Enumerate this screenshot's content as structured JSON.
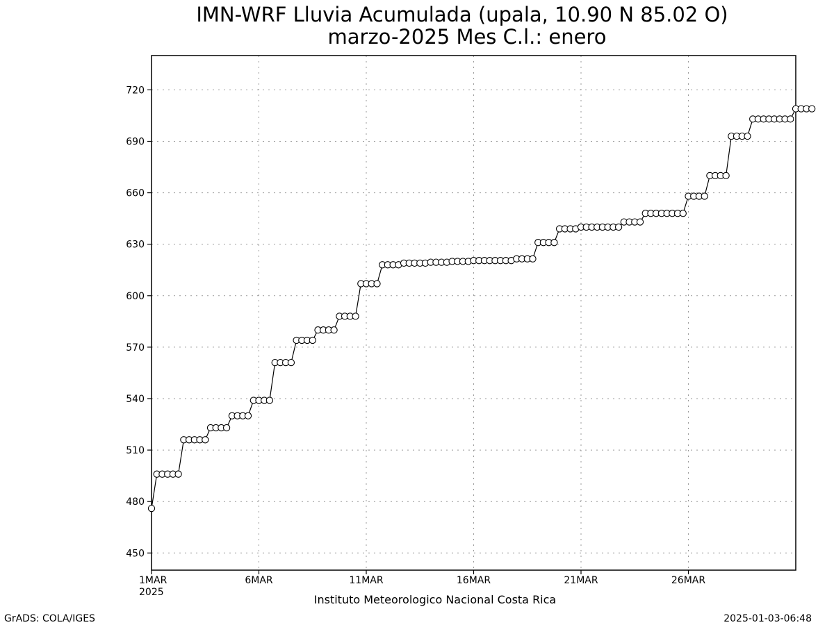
{
  "chart_data": {
    "type": "line",
    "title": "IMN-WRF  Lluvia Acumulada (upala, 10.90  N 85.02  O)",
    "subtitle": "marzo-2025 Mes C.l.: enero",
    "xlabel": "Instituto Meteorologico Nacional Costa Rica",
    "ylabel": "",
    "x_axis": {
      "min_day": 1,
      "max_day": 31,
      "ticks": [
        {
          "day": 1,
          "label": "1MAR"
        },
        {
          "day": 6,
          "label": "6MAR"
        },
        {
          "day": 11,
          "label": "11MAR"
        },
        {
          "day": 16,
          "label": "16MAR"
        },
        {
          "day": 21,
          "label": "21MAR"
        },
        {
          "day": 26,
          "label": "26MAR"
        }
      ],
      "year_label": "2025"
    },
    "ylim": [
      440,
      740
    ],
    "yticks": [
      450,
      480,
      510,
      540,
      570,
      600,
      630,
      660,
      690,
      720
    ],
    "grid": true,
    "values_per_day": 4,
    "series": [
      {
        "values": [
          476,
          496,
          496,
          496,
          496,
          496,
          516,
          516,
          516,
          516,
          516,
          523,
          523,
          523,
          523,
          530,
          530,
          530,
          530,
          539,
          539,
          539,
          539,
          561,
          561,
          561,
          561,
          574,
          574,
          574,
          574,
          580,
          580,
          580,
          580,
          588,
          588,
          588,
          588,
          607,
          607,
          607,
          607,
          618,
          618,
          618,
          618,
          619,
          619,
          619,
          619,
          619,
          619.5,
          619.5,
          619.5,
          619.5,
          620,
          620,
          620,
          620,
          620.5,
          620.5,
          620.5,
          620.5,
          620.5,
          620.5,
          620.5,
          620.5,
          621.5,
          621.5,
          621.5,
          621.5,
          631,
          631,
          631,
          631,
          639,
          639,
          639,
          639,
          640,
          640,
          640,
          640,
          640,
          640,
          640,
          640,
          643,
          643,
          643,
          643,
          648,
          648,
          648,
          648,
          648,
          648,
          648,
          648,
          658,
          658,
          658,
          658,
          670,
          670,
          670,
          670,
          693,
          693,
          693,
          693,
          703,
          703,
          703,
          703,
          703,
          703,
          703,
          703,
          709,
          709,
          709,
          709
        ]
      }
    ]
  },
  "footer": {
    "left": "GrADS: COLA/IGES",
    "right": "2025-01-03-06:48"
  }
}
